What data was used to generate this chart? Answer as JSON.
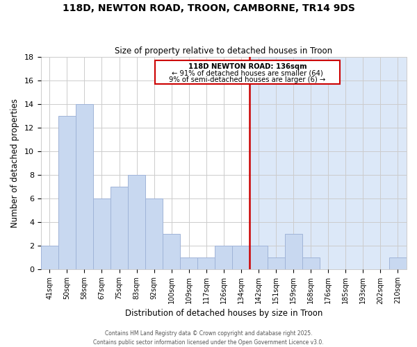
{
  "title": "118D, NEWTON ROAD, TROON, CAMBORNE, TR14 9DS",
  "subtitle": "Size of property relative to detached houses in Troon",
  "xlabel": "Distribution of detached houses by size in Troon",
  "ylabel": "Number of detached properties",
  "categories": [
    "41sqm",
    "50sqm",
    "58sqm",
    "67sqm",
    "75sqm",
    "83sqm",
    "92sqm",
    "100sqm",
    "109sqm",
    "117sqm",
    "126sqm",
    "134sqm",
    "142sqm",
    "151sqm",
    "159sqm",
    "168sqm",
    "176sqm",
    "185sqm",
    "193sqm",
    "202sqm",
    "210sqm"
  ],
  "values": [
    2,
    13,
    14,
    6,
    7,
    8,
    6,
    3,
    1,
    1,
    2,
    2,
    2,
    1,
    3,
    1,
    0,
    0,
    0,
    0,
    1
  ],
  "bar_color": "#c8d8f0",
  "bar_edge_color": "#a0b4d8",
  "vline_x_idx": 12,
  "vline_color": "#cc0000",
  "annotation_title": "118D NEWTON ROAD: 136sqm",
  "annotation_line1": "← 91% of detached houses are smaller (64)",
  "annotation_line2": "9% of semi-detached houses are larger (6) →",
  "annotation_box_facecolor": "#ffffff",
  "annotation_box_edgecolor": "#cc0000",
  "highlight_from_idx": 12,
  "highlight_color": "#dce8f8",
  "ylim": [
    0,
    18
  ],
  "yticks": [
    0,
    2,
    4,
    6,
    8,
    10,
    12,
    14,
    16,
    18
  ],
  "bg_color": "#ffffff",
  "grid_color": "#cccccc",
  "footer_line1": "Contains HM Land Registry data © Crown copyright and database right 2025.",
  "footer_line2": "Contains public sector information licensed under the Open Government Licence v3.0."
}
